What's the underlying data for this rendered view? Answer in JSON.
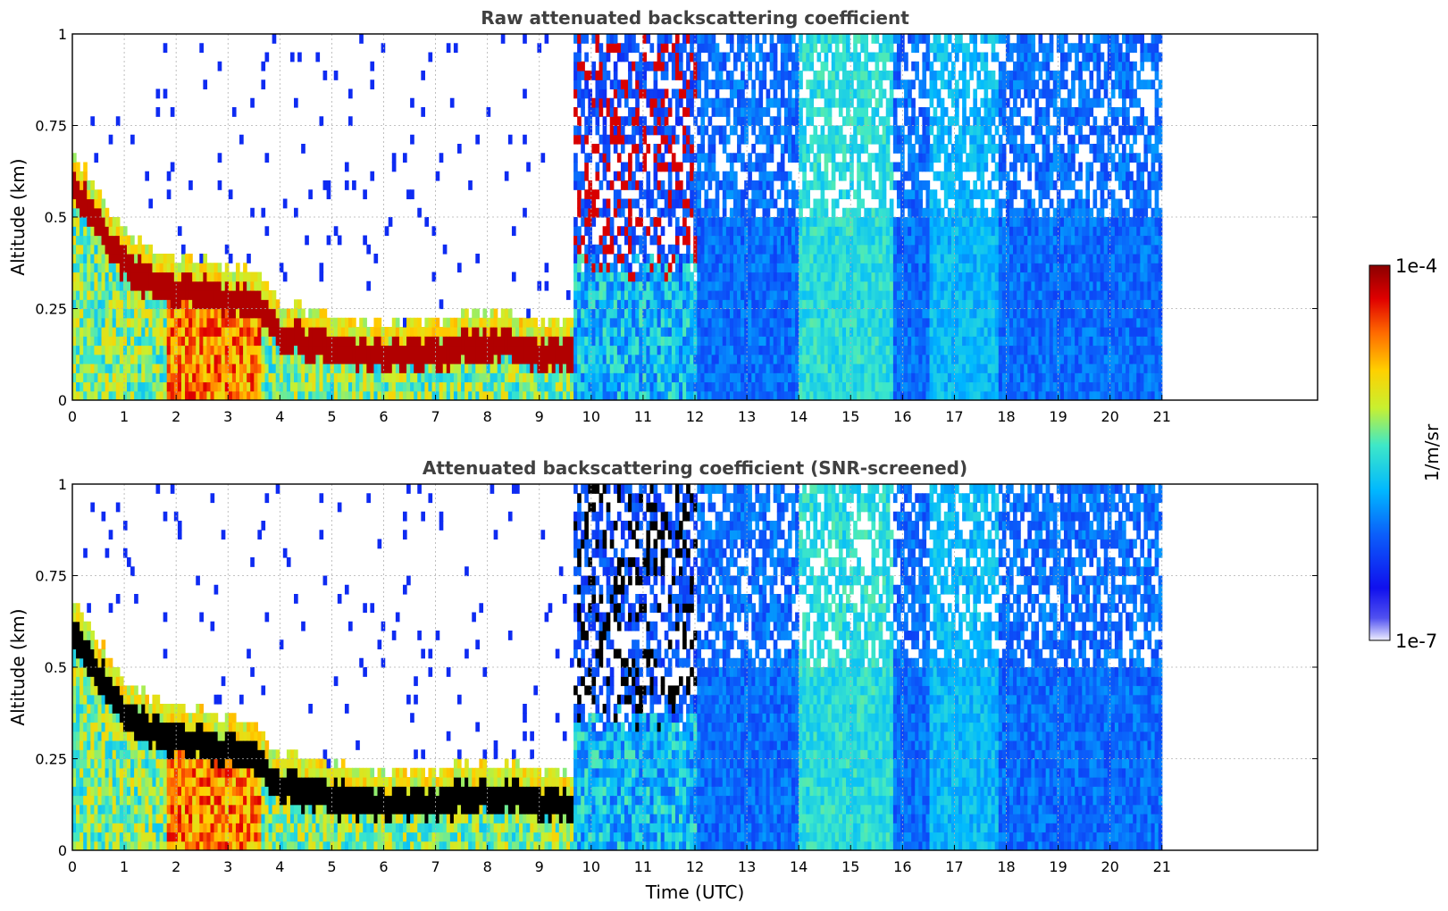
{
  "chart_data": [
    {
      "type": "heatmap",
      "title": "Raw attenuated backscattering coefficient",
      "xlabel": "",
      "ylabel": "Altitude (km)",
      "xlim": [
        0,
        24
      ],
      "ylim": [
        0,
        1
      ],
      "x_ticks": [
        "0",
        "1",
        "2",
        "3",
        "4",
        "5",
        "6",
        "7",
        "8",
        "9",
        "10",
        "11",
        "12",
        "13",
        "14",
        "15",
        "16",
        "17",
        "18",
        "19",
        "20",
        "21"
      ],
      "y_ticks": [
        "0",
        "0.25",
        "0.5",
        "0.75",
        "1"
      ],
      "grid": true,
      "data_extent_hours": [
        0,
        21
      ],
      "features": {
        "boundary_layer_top_km": [
          [
            0,
            0.62
          ],
          [
            0.5,
            0.5
          ],
          [
            1,
            0.4
          ],
          [
            1.6,
            0.34
          ],
          [
            2,
            0.33
          ],
          [
            3,
            0.3
          ],
          [
            3.5,
            0.28
          ],
          [
            4,
            0.2
          ],
          [
            5,
            0.17
          ],
          [
            6,
            0.15
          ],
          [
            7,
            0.16
          ],
          [
            8,
            0.18
          ],
          [
            9,
            0.16
          ],
          [
            9.6,
            0.14
          ]
        ],
        "high_signal_hours": [
          9.6,
          12
        ]
      }
    },
    {
      "type": "heatmap",
      "title": "Attenuated backscattering coefficient (SNR-screened)",
      "xlabel": "Time (UTC)",
      "ylabel": "Altitude (km)",
      "xlim": [
        0,
        24
      ],
      "ylim": [
        0,
        1
      ],
      "x_ticks": [
        "0",
        "1",
        "2",
        "3",
        "4",
        "5",
        "6",
        "7",
        "8",
        "9",
        "10",
        "11",
        "12",
        "13",
        "14",
        "15",
        "16",
        "17",
        "18",
        "19",
        "20",
        "21"
      ],
      "y_ticks": [
        "0",
        "0.25",
        "0.5",
        "0.75",
        "1"
      ],
      "grid": true,
      "data_extent_hours": [
        0,
        21
      ],
      "features": {
        "saturated_color": "#000000"
      }
    }
  ],
  "colorbar": {
    "max_label": "1e-4",
    "min_label": "1e-7",
    "label": "1/m/sr",
    "colors": [
      "#eeeeff",
      "#1010ee",
      "#0b5dfa",
      "#00b8ff",
      "#3ee8c8",
      "#c8f030",
      "#ffd000",
      "#ff6a00",
      "#e00000",
      "#8b0000"
    ]
  }
}
